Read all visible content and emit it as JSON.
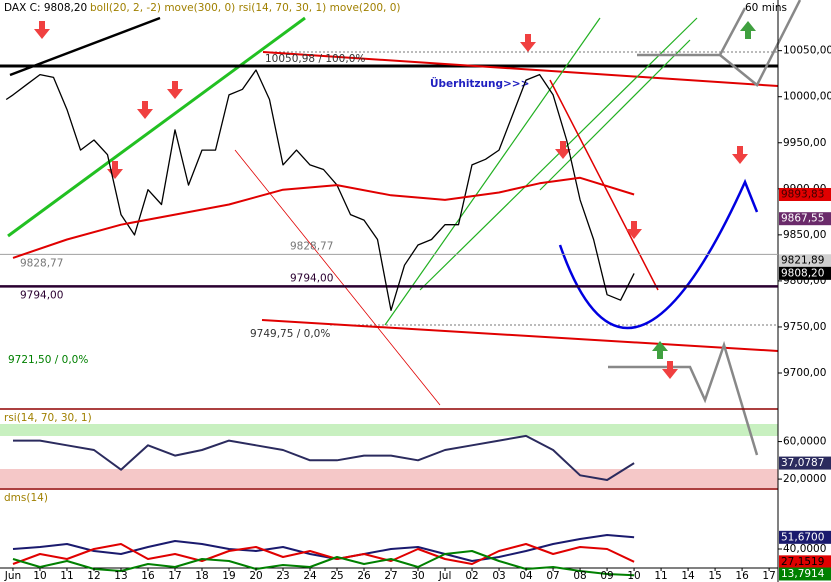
{
  "chart_data": [
    {
      "type": "line",
      "title": "DAX C: 9808,20",
      "subtitle": "boll(20, 2, -2) move(300, 0) rsi(14, 70, 30, 1) move(200, 0)",
      "timeframe": "60 mins",
      "ylim": [
        9662,
        10105
      ],
      "yticks": [
        {
          "value": 10050,
          "label": "10050,00"
        },
        {
          "value": 10000,
          "label": "10000,00"
        },
        {
          "value": 9950,
          "label": "9950,00"
        },
        {
          "value": 9900,
          "label": "9900,00"
        },
        {
          "value": 9850,
          "label": "9850,00"
        },
        {
          "value": 9800,
          "label": "9800,00"
        },
        {
          "value": 9750,
          "label": "9750,00"
        },
        {
          "value": 9700,
          "label": "9700,00"
        }
      ],
      "series": [
        {
          "color": "#000000",
          "x": [
            -0.25,
            0,
            0.5,
            1,
            1.5,
            2,
            2.5,
            3,
            3.5,
            4,
            4.5,
            5,
            5.5,
            6,
            6.5,
            7,
            7.5,
            8,
            8.5,
            9,
            9.5,
            10,
            10.5,
            11,
            11.5,
            12,
            12.5,
            13,
            13.5,
            14,
            14.5,
            15,
            15.5,
            16,
            16.5,
            17,
            17.5,
            18,
            18.5,
            19,
            19.5,
            20,
            20.5,
            21,
            21.5,
            22,
            22.5,
            23
          ],
          "values": [
            9997,
            10002,
            10013,
            10024,
            10021,
            9986,
            9942,
            9953,
            9937,
            9872,
            9850,
            9899,
            9883,
            9964,
            9904,
            9942,
            9942,
            10002,
            10008,
            10029,
            9997,
            9926,
            9942,
            9926,
            9921,
            9904,
            9872,
            9866,
            9845,
            9768,
            9817,
            9839,
            9845,
            9861,
            9861,
            9926,
            9932,
            9942,
            9980,
            10018,
            10024,
            10002,
            9953,
            9888,
            9845,
            9785,
            9779,
            9808.2
          ]
        },
        {
          "color": "#e00000",
          "x": [
            0,
            2,
            4,
            6,
            8,
            10,
            12,
            14,
            16,
            18,
            19.5,
            21,
            23
          ],
          "values": [
            9825,
            9845,
            9861,
            9872,
            9883,
            9899,
            9904,
            9893,
            9888,
            9896,
            9906,
            9912,
            9893.83
          ]
        }
      ],
      "levels": [
        {
          "value": 9828.77,
          "label": "9828,77",
          "color": "#a0a0a0"
        },
        {
          "value": 9794,
          "label": "9794,00",
          "color": "#2a0030"
        }
      ],
      "markers": [
        {
          "value": 9893.83,
          "label": "9893,83",
          "color": "#e00000",
          "text_color": "#400000"
        },
        {
          "value": 9867.55,
          "label": "9867,55",
          "color": "#6a2a6a",
          "text_color": "#ffffff"
        },
        {
          "value": 9821.89,
          "label": "9821,89",
          "color": "#d0d0d0",
          "text_color": "#000000"
        },
        {
          "value": 9808.2,
          "label": "9808,20",
          "color": "#000000",
          "text_color": "#ffffff"
        }
      ],
      "annotations": [
        "10050,98 / 100,0%",
        "Überhitzung>>>",
        "9749,75 / 0,0%",
        "9721,50 / 0,0%"
      ]
    },
    {
      "type": "line",
      "title": "rsi(14, 70, 30, 1)",
      "ylim": [
        10.5,
        92.6
      ],
      "yticks": [
        {
          "value": 60,
          "label": "60,0000"
        },
        {
          "value": 20,
          "label": "20,0000"
        }
      ],
      "x": [
        0,
        1,
        2,
        3,
        4,
        5,
        6,
        7,
        8,
        9,
        10,
        11,
        12,
        13,
        14,
        15,
        16,
        17,
        18,
        19,
        20,
        21,
        22,
        23
      ],
      "series": [
        {
          "color": "#2b2b5e",
          "values": [
            61,
            61,
            56,
            51,
            30,
            56,
            45,
            51,
            61,
            56,
            51,
            40,
            40,
            45,
            45,
            40,
            51,
            56,
            61,
            66,
            51,
            24,
            19,
            37.0787
          ]
        }
      ],
      "markers": [
        {
          "value": 37.0787,
          "label": "37,0787",
          "color": "#2b2b5e",
          "text_color": "#ffffff"
        }
      ]
    },
    {
      "type": "line",
      "title": "dms(14)",
      "ylim": [
        11,
        98
      ],
      "xlim": [
        -0.48,
        28.33
      ],
      "yticks": [
        {
          "value": 40,
          "label": "40,0000"
        }
      ],
      "xticks": [
        {
          "value": 0,
          "label": "Jun"
        },
        {
          "value": 1,
          "label": "10"
        },
        {
          "value": 2,
          "label": "11"
        },
        {
          "value": 3,
          "label": "12"
        },
        {
          "value": 4,
          "label": "13"
        },
        {
          "value": 5,
          "label": "16"
        },
        {
          "value": 6,
          "label": "17"
        },
        {
          "value": 7,
          "label": "18"
        },
        {
          "value": 8,
          "label": "19"
        },
        {
          "value": 9,
          "label": "20"
        },
        {
          "value": 10,
          "label": "23"
        },
        {
          "value": 11,
          "label": "24"
        },
        {
          "value": 12,
          "label": "25"
        },
        {
          "value": 13,
          "label": "26"
        },
        {
          "value": 14,
          "label": "27"
        },
        {
          "value": 15,
          "label": "30"
        },
        {
          "value": 16,
          "label": "Jul"
        },
        {
          "value": 17,
          "label": "02"
        },
        {
          "value": 18,
          "label": "03"
        },
        {
          "value": 19,
          "label": "04"
        },
        {
          "value": 20,
          "label": "07"
        },
        {
          "value": 21,
          "label": "08"
        },
        {
          "value": 22,
          "label": "09"
        },
        {
          "value": 23,
          "label": "10"
        },
        {
          "value": 24,
          "label": "11"
        },
        {
          "value": 25,
          "label": "14"
        },
        {
          "value": 26,
          "label": "15"
        },
        {
          "value": 27,
          "label": "16"
        },
        {
          "value": 28,
          "label": "17"
        }
      ],
      "x": [
        0,
        1,
        2,
        3,
        4,
        5,
        6,
        7,
        8,
        9,
        10,
        11,
        12,
        13,
        14,
        15,
        16,
        17,
        18,
        19,
        20,
        21,
        22,
        23
      ],
      "series": [
        {
          "color": "#1a1a6e",
          "values": [
            40,
            42,
            45,
            38,
            35,
            42,
            48,
            45,
            40,
            38,
            42,
            35,
            30,
            35,
            40,
            42,
            35,
            28,
            32,
            38,
            45,
            50,
            54,
            51.67
          ]
        },
        {
          "color": "#e00000",
          "values": [
            25,
            35,
            30,
            40,
            45,
            30,
            35,
            28,
            38,
            42,
            32,
            38,
            30,
            35,
            28,
            40,
            30,
            25,
            38,
            45,
            35,
            42,
            40,
            27.1519
          ]
        },
        {
          "color": "#008000",
          "values": [
            30,
            22,
            28,
            20,
            18,
            25,
            22,
            30,
            28,
            20,
            24,
            22,
            32,
            25,
            30,
            22,
            35,
            38,
            28,
            20,
            22,
            18,
            15,
            13.7914
          ]
        }
      ],
      "markers": [
        {
          "value": 51.67,
          "label": "51,6700",
          "color": "#1a1a6e",
          "text_color": "#ffffff"
        },
        {
          "value": 27.1519,
          "label": "27,1519",
          "color": "#e00000",
          "text_color": "#000000"
        },
        {
          "value": 13.7914,
          "label": "13,7914",
          "color": "#008000",
          "text_color": "#ffffff"
        }
      ]
    }
  ]
}
